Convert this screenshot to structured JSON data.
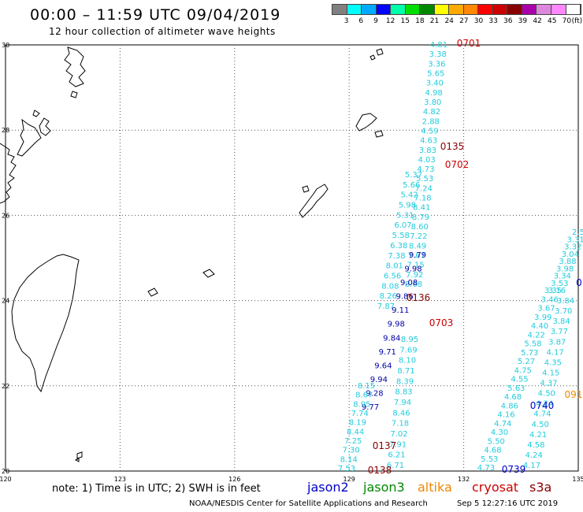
{
  "header": {
    "title": "00:00 – 11:59 UTC 09/04/2019",
    "subtitle": "12 hour collection of altimeter wave heights"
  },
  "legend": {
    "colors": [
      "#808080",
      "#00ffff",
      "#00aaff",
      "#0000ff",
      "#00ffaa",
      "#00dd00",
      "#008800",
      "#ffff00",
      "#ffaa00",
      "#ff8800",
      "#ff0000",
      "#cc0000",
      "#880000",
      "#aa00aa",
      "#dd88dd",
      "#ff88ff",
      "#ffffff"
    ],
    "labels": [
      {
        "text": "3",
        "t": 1
      },
      {
        "text": "6",
        "t": 2
      },
      {
        "text": "9",
        "t": 3
      },
      {
        "text": "12",
        "t": 4
      },
      {
        "text": "15",
        "t": 5
      },
      {
        "text": "18",
        "t": 6
      },
      {
        "text": "21",
        "t": 7
      },
      {
        "text": "24",
        "t": 8
      },
      {
        "text": "27",
        "t": 9
      },
      {
        "text": "30",
        "t": 10
      },
      {
        "text": "33",
        "t": 11
      },
      {
        "text": "36",
        "t": 12
      },
      {
        "text": "39",
        "t": 13
      },
      {
        "text": "42",
        "t": 14
      },
      {
        "text": "45",
        "t": 15
      },
      {
        "text": "70",
        "t": 16
      },
      {
        "text": "(ft)",
        "t": 16.7
      }
    ]
  },
  "axes": {
    "lon_ticks": [
      {
        "v": 120,
        "label": "120"
      },
      {
        "v": 123,
        "label": "123"
      },
      {
        "v": 126,
        "label": "126"
      },
      {
        "v": 129,
        "label": "129"
      },
      {
        "v": 132,
        "label": "132"
      },
      {
        "v": 135,
        "label": "135"
      }
    ],
    "lat_ticks": [
      {
        "v": 30,
        "label": "30"
      },
      {
        "v": 28,
        "label": "28"
      },
      {
        "v": 26,
        "label": "26"
      },
      {
        "v": 24,
        "label": "24"
      },
      {
        "v": 22,
        "label": "22"
      },
      {
        "v": 20,
        "label": "20"
      }
    ],
    "lon_range": [
      120,
      135
    ],
    "lat_range": [
      20,
      30
    ]
  },
  "observations": {
    "track_a_cyan": [
      "4.81",
      "3.38",
      "3.36",
      "5.65",
      "3.40",
      "4.98",
      "3.80",
      "4.82",
      "2.88",
      "4.59",
      "4.63",
      "3.83",
      "4.03",
      "4.73",
      "5.53",
      "7.24",
      "7.18",
      "8.41",
      "8.79",
      "8.60",
      "7.22",
      "8.49",
      "7.67",
      "7.15",
      "7.92",
      "8.68"
    ],
    "track_b_cyan": [
      "5.37",
      "5.66",
      "5.42",
      "5.98",
      "5.31",
      "6.07",
      "5.58",
      "6.38",
      "7.38",
      "8.01",
      "6.56",
      "8.08",
      "8.26",
      "7.87"
    ],
    "track_b_lower": [
      "8.15",
      "8.67",
      "8.95",
      "7.74",
      "8.19",
      "8.44",
      "7.25",
      "7.30",
      "8.14",
      "7.53"
    ],
    "track_blue": [
      "9.79",
      "9.98",
      "9.08",
      "9.86",
      "9.11",
      "9.98",
      "9.84",
      "9.71",
      "9.64",
      "9.94",
      "9.28",
      "9.77"
    ],
    "track_a_lower": [
      "8.95",
      "7.69",
      "8.10",
      "8.71",
      "8.39",
      "8.83",
      "7.94",
      "8.46",
      "7.18",
      "7.02",
      "7.91",
      "6.21",
      "6.71"
    ],
    "track_c_cyan": [
      "3.35",
      "3.46",
      "3.67",
      "3.99",
      "4.40",
      "4.22",
      "5.58",
      "5.73",
      "5.27",
      "4.75",
      "4.55",
      "5.63",
      "4.68",
      "4.86",
      "4.16",
      "4.74",
      "4.30",
      "5.50",
      "4.68",
      "5.53",
      "4.73"
    ],
    "track_d_cyan": [
      "3.84",
      "3.70",
      "3.84",
      "3.77",
      "3.87",
      "4.17",
      "4.35",
      "4.15",
      "4.37",
      "4.50",
      "4.24",
      "4.74",
      "4.50",
      "4.21",
      "4.58",
      "4.24",
      "4.17"
    ],
    "track_e_cyan": [
      "2.5",
      "3.31",
      "3.32",
      "3.04",
      "3.88",
      "3.98",
      "3.34",
      "3.53",
      "3.16"
    ],
    "time_labels": [
      {
        "text": "0701",
        "color": "#cc0000"
      },
      {
        "text": "0135",
        "color": "#880000"
      },
      {
        "text": "0702",
        "color": "#cc0000"
      },
      {
        "text": "0136",
        "color": "#880000"
      },
      {
        "text": "0703",
        "color": "#cc0000"
      },
      {
        "text": "0137",
        "color": "#880000"
      },
      {
        "text": "0138",
        "color": "#880000"
      },
      {
        "text": "0740",
        "color": "#0000cc"
      },
      {
        "text": "0739",
        "color": "#0000cc"
      },
      {
        "text": "091",
        "color": "#ee8800"
      },
      {
        "text": "0",
        "color": "#0000cc"
      }
    ]
  },
  "footer": {
    "note": "note: 1) Time is in UTC; 2) SWH is in feet",
    "satellites": [
      {
        "name": "jason2",
        "color": "#0000cc"
      },
      {
        "name": "jason3",
        "color": "#008800"
      },
      {
        "name": "altika",
        "color": "#ee8800"
      },
      {
        "name": "cryosat",
        "color": "#cc0000"
      },
      {
        "name": "s3a",
        "color": "#880000"
      }
    ],
    "credit": "NOAA/NESDIS Center for Satellite Applications and Research",
    "timestamp": "Sep  5 12:27:16 UTC 2019"
  },
  "colors": {
    "cyan_obs": "#22ccdd",
    "blue_obs": "#0000aa",
    "coast": "#000000",
    "grid": "#555555"
  }
}
